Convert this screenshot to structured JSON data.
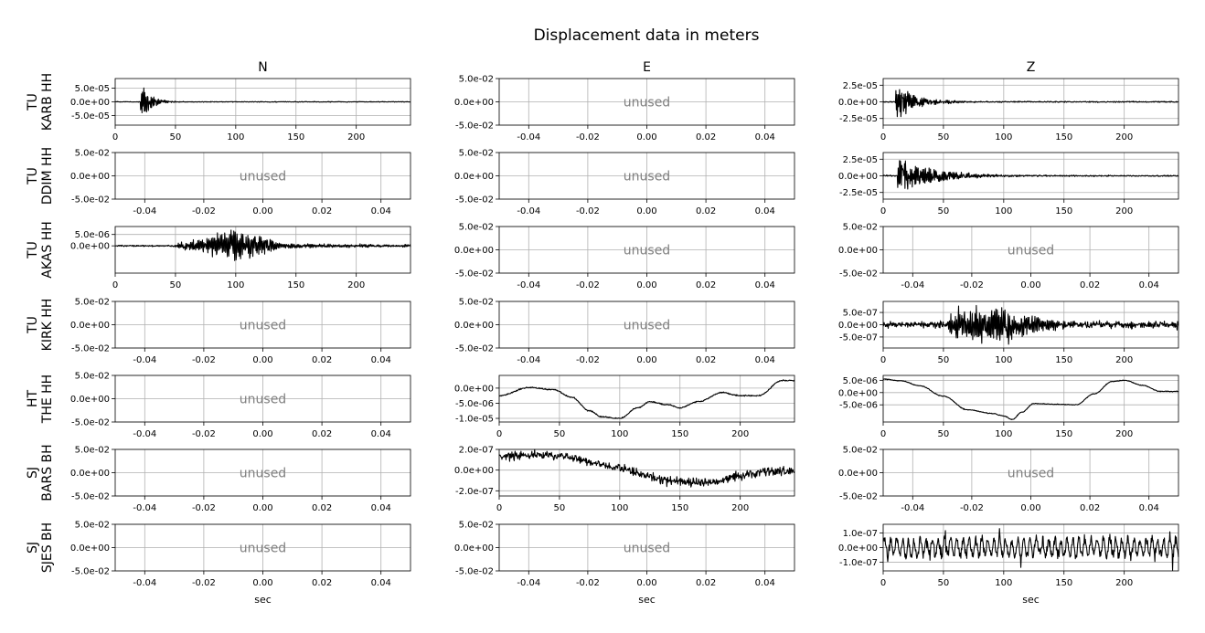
{
  "figure": {
    "title": "Displacement data in meters"
  },
  "chart_data": {
    "type": "line",
    "title": "Displacement data in meters",
    "columns": [
      "N",
      "E",
      "Z"
    ],
    "rows": [
      {
        "label": "TU\nKARB HH",
        "line1": "TU",
        "line2": "KARB HH"
      },
      {
        "label": "TU\nDDIM HH",
        "line1": "TU",
        "line2": "DDIM HH"
      },
      {
        "label": "TU\nAKAS HH",
        "line1": "TU",
        "line2": "AKAS HH"
      },
      {
        "label": "TU\nKIRK HH",
        "line1": "TU",
        "line2": "KIRK HH"
      },
      {
        "label": "HT\nTHE HH",
        "line1": "HT",
        "line2": "THE HH"
      },
      {
        "label": "SJ\nBARS BH",
        "line1": "SJ",
        "line2": "BARS BH"
      },
      {
        "label": "SJ\nSJES BH",
        "line1": "SJ",
        "line2": "SJES BH"
      }
    ],
    "xlabel": "sec",
    "unused_text": "unused",
    "unused_axes": {
      "xlim": [
        -0.05,
        0.05
      ],
      "ylim": [
        -0.05,
        0.05
      ],
      "xticks": [
        "-0.04",
        "-0.02",
        "0.00",
        "0.02",
        "0.04"
      ],
      "yticks": [
        "5.0e-02",
        "0.0e+00",
        "-5.0e-02"
      ]
    },
    "grid": true,
    "panels": [
      {
        "row": 0,
        "col": 0,
        "used": true,
        "trace": "burst",
        "xlim": [
          0,
          245
        ],
        "ylim": [
          -8.5e-05,
          8.5e-05
        ],
        "xticks": [
          "0",
          "50",
          "100",
          "150",
          "200"
        ],
        "yticks": [
          {
            "v": 5e-05,
            "t": "5.0e-05"
          },
          {
            "v": 0,
            "t": "0.0e+00"
          },
          {
            "v": -5e-05,
            "t": "-5.0e-05"
          }
        ],
        "peak": 8e-05,
        "onset": 21,
        "decay": 8,
        "noise": 1.2e-06,
        "seed": 3
      },
      {
        "row": 0,
        "col": 1,
        "used": false
      },
      {
        "row": 0,
        "col": 2,
        "used": true,
        "trace": "burst",
        "xlim": [
          0,
          245
        ],
        "ylim": [
          -3.5e-05,
          3.5e-05
        ],
        "xticks": [
          "0",
          "50",
          "100",
          "150",
          "200"
        ],
        "yticks": [
          {
            "v": 2.5e-05,
            "t": "2.5e-05"
          },
          {
            "v": 0,
            "t": "0.0e+00"
          },
          {
            "v": -2.5e-05,
            "t": "-2.5e-05"
          }
        ],
        "peak": 3e-05,
        "onset": 10,
        "decay": 18,
        "noise": 8e-07,
        "seed": 7
      },
      {
        "row": 1,
        "col": 0,
        "used": false
      },
      {
        "row": 1,
        "col": 1,
        "used": false
      },
      {
        "row": 1,
        "col": 2,
        "used": true,
        "trace": "burst",
        "xlim": [
          0,
          245
        ],
        "ylim": [
          -3.5e-05,
          3.5e-05
        ],
        "xticks": [
          "0",
          "50",
          "100",
          "150",
          "200"
        ],
        "yticks": [
          {
            "v": 2.5e-05,
            "t": "2.5e-05"
          },
          {
            "v": 0,
            "t": "0.0e+00"
          },
          {
            "v": -2.5e-05,
            "t": "-2.5e-05"
          }
        ],
        "peak": 3e-05,
        "onset": 12,
        "decay": 30,
        "noise": 9e-07,
        "seed": 11
      },
      {
        "row": 2,
        "col": 0,
        "used": true,
        "trace": "envelope",
        "xlim": [
          0,
          245
        ],
        "ylim": [
          -1.2e-05,
          8.5e-06
        ],
        "xticks": [
          "0",
          "50",
          "100",
          "150",
          "200"
        ],
        "yticks": [
          {
            "v": 5e-06,
            "t": "5.0e-06"
          },
          {
            "v": 0,
            "t": "0.0e+00"
          }
        ],
        "peak": 8e-06,
        "center": 100,
        "width": 28,
        "start": 48,
        "noise": 3e-07,
        "seed": 5
      },
      {
        "row": 2,
        "col": 1,
        "used": false
      },
      {
        "row": 2,
        "col": 2,
        "used": false
      },
      {
        "row": 3,
        "col": 0,
        "used": false
      },
      {
        "row": 3,
        "col": 1,
        "used": false
      },
      {
        "row": 3,
        "col": 2,
        "used": true,
        "trace": "envelope",
        "xlim": [
          0,
          245
        ],
        "ylim": [
          -9.5e-07,
          9.5e-07
        ],
        "xticks": [
          "0",
          "50",
          "100",
          "150",
          "200"
        ],
        "yticks": [
          {
            "v": 5e-07,
            "t": "5.0e-07"
          },
          {
            "v": 0,
            "t": "0.0e+00"
          },
          {
            "v": -5e-07,
            "t": "-5.0e-07"
          }
        ],
        "peak": 8.5e-07,
        "center": 85,
        "width": 45,
        "start": 55,
        "noise": 1.2e-07,
        "seed": 9
      },
      {
        "row": 4,
        "col": 0,
        "used": false
      },
      {
        "row": 4,
        "col": 1,
        "used": true,
        "trace": "keypoints",
        "xlim": [
          0,
          245
        ],
        "ylim": [
          -1.12e-05,
          4.2e-06
        ],
        "xticks": [
          "0",
          "50",
          "100",
          "150",
          "200"
        ],
        "yticks": [
          {
            "v": 0,
            "t": "0.0e+00"
          },
          {
            "v": -5e-06,
            "t": "-5.0e-06"
          },
          {
            "v": -1e-05,
            "t": "-1.0e-05"
          }
        ],
        "points": [
          [
            0,
            -2.5e-06
          ],
          [
            25,
            2e-07
          ],
          [
            45,
            -5e-07
          ],
          [
            60,
            -3e-06
          ],
          [
            75,
            -7.5e-06
          ],
          [
            85,
            -9.5e-06
          ],
          [
            100,
            -1e-05
          ],
          [
            115,
            -6.5e-06
          ],
          [
            125,
            -4.5e-06
          ],
          [
            140,
            -5.5e-06
          ],
          [
            150,
            -6.5e-06
          ],
          [
            165,
            -4.5e-06
          ],
          [
            185,
            -1.5e-06
          ],
          [
            200,
            -2.5e-06
          ],
          [
            215,
            -2.5e-06
          ],
          [
            235,
            2.5e-06
          ],
          [
            245,
            2.5e-06
          ]
        ],
        "noise": 2e-07,
        "seed": 13
      },
      {
        "row": 4,
        "col": 2,
        "used": true,
        "trace": "keypoints",
        "xlim": [
          0,
          245
        ],
        "ylim": [
          -1.2e-05,
          7e-06
        ],
        "xticks": [
          "0",
          "50",
          "100",
          "150",
          "200"
        ],
        "yticks": [
          {
            "v": 5e-06,
            "t": "5.0e-06"
          },
          {
            "v": 0,
            "t": "0.0e+00"
          },
          {
            "v": -5e-06,
            "t": "-5.0e-06"
          }
        ],
        "points": [
          [
            0,
            5.5e-06
          ],
          [
            15,
            4.8e-06
          ],
          [
            30,
            2.8e-06
          ],
          [
            50,
            -1.5e-06
          ],
          [
            70,
            -7e-06
          ],
          [
            90,
            -8.5e-06
          ],
          [
            100,
            -9.5e-06
          ],
          [
            107,
            -1.1e-05
          ],
          [
            115,
            -8e-06
          ],
          [
            125,
            -4.5e-06
          ],
          [
            145,
            -4.8e-06
          ],
          [
            160,
            -5e-06
          ],
          [
            175,
            -5e-07
          ],
          [
            190,
            4.5e-06
          ],
          [
            200,
            5e-06
          ],
          [
            215,
            3e-06
          ],
          [
            230,
            5e-07
          ],
          [
            245,
            5e-07
          ]
        ],
        "noise": 1.5e-07,
        "seed": 17
      },
      {
        "row": 5,
        "col": 0,
        "used": false
      },
      {
        "row": 5,
        "col": 1,
        "used": true,
        "trace": "keypoints",
        "xlim": [
          0,
          245
        ],
        "ylim": [
          -2.5e-07,
          2e-07
        ],
        "xticks": [
          "0",
          "50",
          "100",
          "150",
          "200"
        ],
        "yticks": [
          {
            "v": 2e-07,
            "t": "2.0e-07"
          },
          {
            "v": 0,
            "t": "0.0e+00"
          },
          {
            "v": -2e-07,
            "t": "-2.0e-07"
          }
        ],
        "points": [
          [
            0,
            1.3e-07
          ],
          [
            30,
            1.5e-07
          ],
          [
            60,
            1.2e-07
          ],
          [
            80,
            7e-08
          ],
          [
            100,
            2e-08
          ],
          [
            120,
            -5e-08
          ],
          [
            140,
            -1e-07
          ],
          [
            160,
            -1.2e-07
          ],
          [
            180,
            -1.2e-07
          ],
          [
            200,
            -5e-08
          ],
          [
            220,
            -2e-08
          ],
          [
            245,
            -1e-08
          ]
        ],
        "noise": 4e-08,
        "seed": 19
      },
      {
        "row": 5,
        "col": 2,
        "used": false
      },
      {
        "row": 6,
        "col": 0,
        "used": false
      },
      {
        "row": 6,
        "col": 1,
        "used": false
      },
      {
        "row": 6,
        "col": 2,
        "used": true,
        "trace": "noise",
        "xlim": [
          0,
          245
        ],
        "ylim": [
          -1.6e-07,
          1.6e-07
        ],
        "xticks": [
          "0",
          "50",
          "100",
          "150",
          "200"
        ],
        "yticks": [
          {
            "v": 1e-07,
            "t": "1.0e-07"
          },
          {
            "v": 0,
            "t": "0.0e+00"
          },
          {
            "v": -1e-07,
            "t": "-1.0e-07"
          }
        ],
        "amp": 7e-08,
        "noise": 3e-08,
        "seed": 23
      }
    ]
  }
}
